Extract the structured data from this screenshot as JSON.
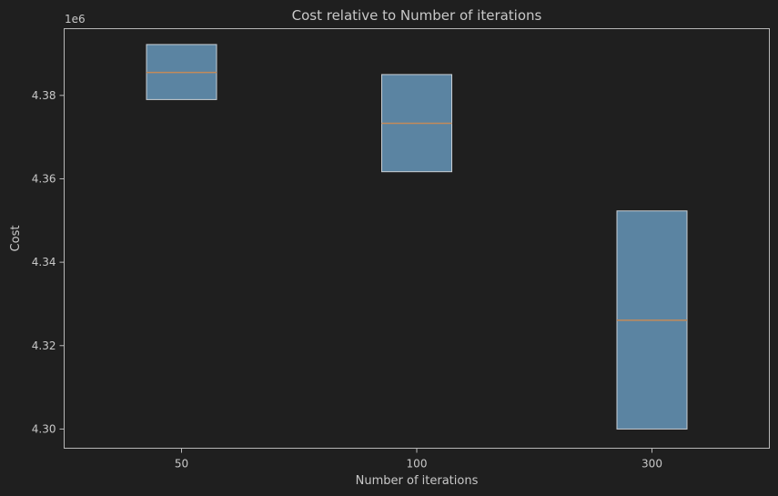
{
  "chart_data": {
    "type": "box",
    "title": "Cost relative to Number of iterations",
    "xlabel": "Number of iterations",
    "ylabel": "Cost",
    "y_multiplier_label": "1e6",
    "categories": [
      "50",
      "100",
      "300"
    ],
    "boxes": [
      {
        "category": "50",
        "q1": 4.379,
        "median": 4.3855,
        "q3": 4.3922
      },
      {
        "category": "100",
        "q1": 4.3617,
        "median": 4.3733,
        "q3": 4.385
      },
      {
        "category": "300",
        "q1": 4.3,
        "median": 4.3261,
        "q3": 4.3523
      }
    ],
    "ylim": [
      4.2954,
      4.396
    ],
    "yticks": [
      4.3,
      4.32,
      4.34,
      4.36,
      4.38
    ],
    "ytick_labels": [
      "4.30",
      "4.32",
      "4.34",
      "4.36",
      "4.38"
    ],
    "grid": false,
    "legend": "none",
    "colors": {
      "background": "#1f1f1f",
      "box_fill": "#5b84a2",
      "box_edge": "#c9cfd4",
      "median": "#c28a5a",
      "axes": "#b7b7b7",
      "text": "#c8c8c8"
    }
  }
}
